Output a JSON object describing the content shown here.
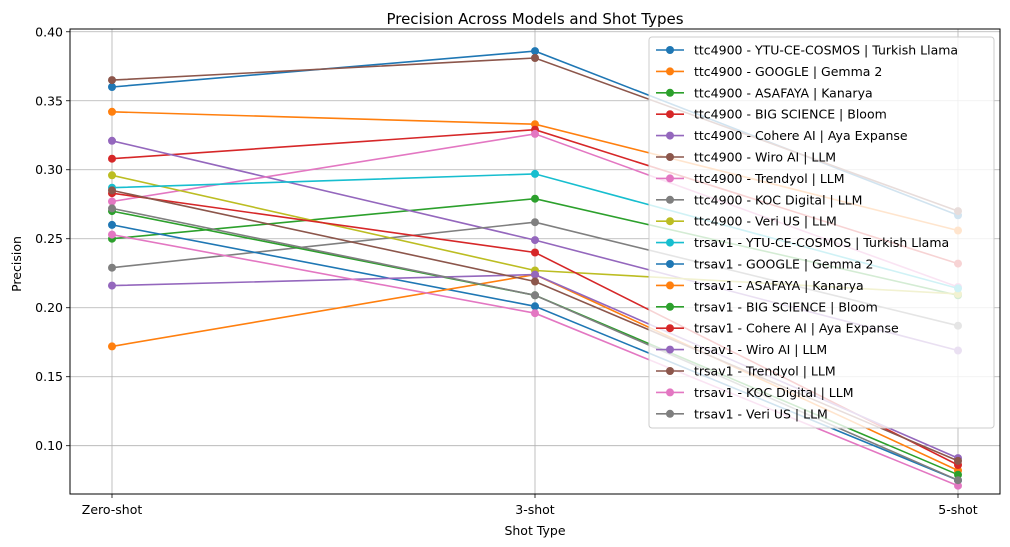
{
  "chart_data": {
    "type": "line",
    "title": "Precision Across Models and Shot Types",
    "xlabel": "Shot Type",
    "ylabel": "Precision",
    "categories": [
      "Zero-shot",
      "3-shot",
      "5-shot"
    ],
    "ylim": [
      0.065,
      0.402
    ],
    "yticks": [
      "0.10",
      "0.15",
      "0.20",
      "0.25",
      "0.30",
      "0.35",
      "0.40"
    ],
    "grid": true,
    "legend_position": "upper-right",
    "series": [
      {
        "name": "ttc4900 - YTU-CE-COSMOS | Turkish Llama",
        "color": "#1f77b4",
        "values": [
          0.36,
          0.386,
          0.267
        ]
      },
      {
        "name": "ttc4900 - GOOGLE | Gemma 2",
        "color": "#ff7f0e",
        "values": [
          0.342,
          0.333,
          0.256
        ]
      },
      {
        "name": "ttc4900 - ASAFAYA | Kanarya",
        "color": "#2ca02c",
        "values": [
          0.25,
          0.279,
          0.209
        ]
      },
      {
        "name": "ttc4900 - BIG SCIENCE | Bloom",
        "color": "#d62728",
        "values": [
          0.308,
          0.329,
          0.232
        ]
      },
      {
        "name": "ttc4900 - Cohere AI | Aya Expanse",
        "color": "#9467bd",
        "values": [
          0.321,
          0.249,
          0.169
        ]
      },
      {
        "name": "ttc4900 - Wiro AI | LLM",
        "color": "#8c564b",
        "values": [
          0.365,
          0.381,
          0.27
        ]
      },
      {
        "name": "ttc4900 - Trendyol | LLM",
        "color": "#e377c2",
        "values": [
          0.277,
          0.326,
          0.215
        ]
      },
      {
        "name": "ttc4900 - KOC Digital | LLM",
        "color": "#7f7f7f",
        "values": [
          0.229,
          0.262,
          0.187
        ]
      },
      {
        "name": "ttc4900 - Veri US | LLM",
        "color": "#bcbd22",
        "values": [
          0.296,
          0.227,
          0.21
        ]
      },
      {
        "name": "trsav1 - YTU-CE-COSMOS | Turkish Llama",
        "color": "#17becf",
        "values": [
          0.287,
          0.297,
          0.214
        ]
      },
      {
        "name": "trsav1 - GOOGLE | Gemma 2",
        "color": "#1f77b4",
        "values": [
          0.26,
          0.201,
          0.075
        ]
      },
      {
        "name": "trsav1 - ASAFAYA | Kanarya",
        "color": "#ff7f0e",
        "values": [
          0.172,
          0.224,
          0.082
        ]
      },
      {
        "name": "trsav1 - BIG SCIENCE | Bloom",
        "color": "#2ca02c",
        "values": [
          0.27,
          0.209,
          0.079
        ]
      },
      {
        "name": "trsav1 - Cohere AI | Aya Expanse",
        "color": "#d62728",
        "values": [
          0.283,
          0.24,
          0.086
        ]
      },
      {
        "name": "trsav1 - Wiro AI | LLM",
        "color": "#9467bd",
        "values": [
          0.216,
          0.224,
          0.091
        ]
      },
      {
        "name": "trsav1 - Trendyol | LLM",
        "color": "#8c564b",
        "values": [
          0.285,
          0.219,
          0.089
        ]
      },
      {
        "name": "trsav1 - KOC Digital | LLM",
        "color": "#e377c2",
        "values": [
          0.253,
          0.196,
          0.071
        ]
      },
      {
        "name": "trsav1 - Veri US | LLM",
        "color": "#7f7f7f",
        "values": [
          0.272,
          0.209,
          0.075
        ]
      }
    ]
  }
}
